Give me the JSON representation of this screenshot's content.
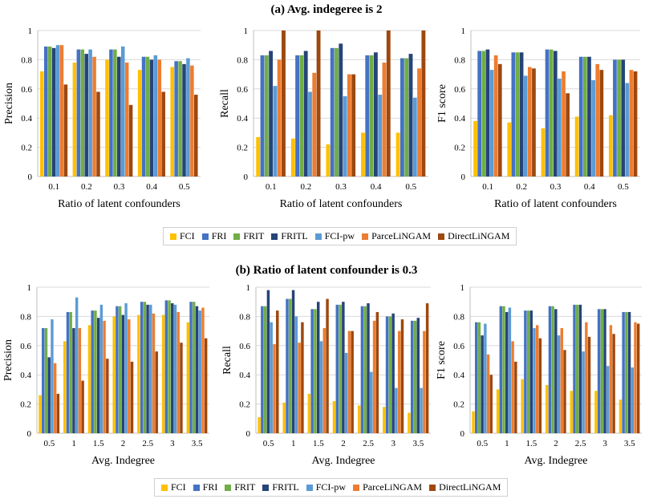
{
  "titles": {
    "section_a": "(a) Avg. indegeree is 2",
    "section_b": "(b) Ratio of latent confounder is 0.3"
  },
  "legend": [
    {
      "name": "FCI",
      "color": "#FFC000"
    },
    {
      "name": "FRI",
      "color": "#4472C4"
    },
    {
      "name": "FRIT",
      "color": "#70AD47"
    },
    {
      "name": "FRITL",
      "color": "#264478"
    },
    {
      "name": "FCI-pw",
      "color": "#5B9BD5"
    },
    {
      "name": "ParceLiNGAM",
      "color": "#ED7D31"
    },
    {
      "name": "DirectLiNGAM",
      "color": "#9E480E"
    }
  ],
  "chart_data": [
    {
      "type": "bar",
      "ylabel": "Precision",
      "xlabel": "Ratio of latent confounders",
      "ylim": [
        0,
        1
      ],
      "yticks": [
        "0",
        "0.2",
        "0.4",
        "0.6",
        "0.8",
        "1"
      ],
      "categories": [
        "0.1",
        "0.2",
        "0.3",
        "0.4",
        "0.5"
      ],
      "series": [
        {
          "name": "FCI",
          "values": [
            0.72,
            0.78,
            0.8,
            0.73,
            0.75
          ]
        },
        {
          "name": "FRI",
          "values": [
            0.89,
            0.87,
            0.87,
            0.82,
            0.79
          ]
        },
        {
          "name": "FRIT",
          "values": [
            0.89,
            0.87,
            0.87,
            0.82,
            0.79
          ]
        },
        {
          "name": "FRITL",
          "values": [
            0.88,
            0.84,
            0.82,
            0.8,
            0.77
          ]
        },
        {
          "name": "FCI-pw",
          "values": [
            0.9,
            0.87,
            0.89,
            0.83,
            0.81
          ]
        },
        {
          "name": "ParceLiNGAM",
          "values": [
            0.9,
            0.82,
            0.78,
            0.8,
            0.76
          ]
        },
        {
          "name": "DirectLiNGAM",
          "values": [
            0.63,
            0.58,
            0.49,
            0.58,
            0.56
          ]
        }
      ]
    },
    {
      "type": "bar",
      "ylabel": "Recall",
      "xlabel": "Ratio of latent confounders",
      "ylim": [
        0,
        1
      ],
      "yticks": [
        "0",
        "0.2",
        "0.4",
        "0.6",
        "0.8",
        "1"
      ],
      "categories": [
        "0.1",
        "0.2",
        "0.3",
        "0.4",
        "0.5"
      ],
      "series": [
        {
          "name": "FCI",
          "values": [
            0.27,
            0.26,
            0.22,
            0.3,
            0.3
          ]
        },
        {
          "name": "FRI",
          "values": [
            0.83,
            0.83,
            0.88,
            0.83,
            0.81
          ]
        },
        {
          "name": "FRIT",
          "values": [
            0.83,
            0.83,
            0.88,
            0.83,
            0.81
          ]
        },
        {
          "name": "FRITL",
          "values": [
            0.86,
            0.86,
            0.91,
            0.85,
            0.84
          ]
        },
        {
          "name": "FCI-pw",
          "values": [
            0.62,
            0.58,
            0.55,
            0.56,
            0.54
          ]
        },
        {
          "name": "ParceLiNGAM",
          "values": [
            0.8,
            0.71,
            0.7,
            0.78,
            0.74
          ]
        },
        {
          "name": "DirectLiNGAM",
          "values": [
            1.0,
            1.0,
            0.7,
            1.0,
            1.0
          ]
        }
      ]
    },
    {
      "type": "bar",
      "ylabel": "F1 score",
      "xlabel": "Ratio of latent confounders",
      "ylim": [
        0,
        1
      ],
      "yticks": [
        "0",
        "0.2",
        "0.4",
        "0.6",
        "0.8",
        "1"
      ],
      "categories": [
        "0.1",
        "0.2",
        "0.3",
        "0.4",
        "0.5"
      ],
      "series": [
        {
          "name": "FCI",
          "values": [
            0.38,
            0.37,
            0.33,
            0.41,
            0.42
          ]
        },
        {
          "name": "FRI",
          "values": [
            0.86,
            0.85,
            0.87,
            0.82,
            0.8
          ]
        },
        {
          "name": "FRIT",
          "values": [
            0.86,
            0.85,
            0.87,
            0.82,
            0.8
          ]
        },
        {
          "name": "FRITL",
          "values": [
            0.87,
            0.85,
            0.86,
            0.82,
            0.8
          ]
        },
        {
          "name": "FCI-pw",
          "values": [
            0.73,
            0.69,
            0.67,
            0.66,
            0.64
          ]
        },
        {
          "name": "ParceLiNGAM",
          "values": [
            0.83,
            0.75,
            0.72,
            0.77,
            0.73
          ]
        },
        {
          "name": "DirectLiNGAM",
          "values": [
            0.77,
            0.74,
            0.57,
            0.73,
            0.72
          ]
        }
      ]
    },
    {
      "type": "bar",
      "ylabel": "Precision",
      "xlabel": "Avg. Indegree",
      "ylim": [
        0,
        1
      ],
      "yticks": [
        "0",
        "0.2",
        "0.4",
        "0.6",
        "0.8",
        "1"
      ],
      "categories": [
        "0.5",
        "1",
        "1.5",
        "2",
        "2.5",
        "3",
        "3.5"
      ],
      "series": [
        {
          "name": "FCI",
          "values": [
            0.26,
            0.63,
            0.74,
            0.8,
            0.81,
            0.81,
            0.76
          ]
        },
        {
          "name": "FRI",
          "values": [
            0.72,
            0.83,
            0.84,
            0.87,
            0.9,
            0.91,
            0.9
          ]
        },
        {
          "name": "FRIT",
          "values": [
            0.72,
            0.83,
            0.84,
            0.87,
            0.9,
            0.91,
            0.9
          ]
        },
        {
          "name": "FRITL",
          "values": [
            0.52,
            0.72,
            0.79,
            0.81,
            0.88,
            0.89,
            0.87
          ]
        },
        {
          "name": "FCI-pw",
          "values": [
            0.78,
            0.93,
            0.88,
            0.89,
            0.88,
            0.88,
            0.84
          ]
        },
        {
          "name": "ParceLiNGAM",
          "values": [
            0.48,
            0.72,
            0.77,
            0.78,
            0.82,
            0.83,
            0.86
          ]
        },
        {
          "name": "DirectLiNGAM",
          "values": [
            0.27,
            0.36,
            0.51,
            0.49,
            0.56,
            0.62,
            0.65
          ]
        }
      ]
    },
    {
      "type": "bar",
      "ylabel": "Recall",
      "xlabel": "Avg. Indegree",
      "ylim": [
        0,
        1
      ],
      "yticks": [
        "0",
        "0.2",
        "0.4",
        "0.6",
        "0.8",
        "1"
      ],
      "categories": [
        "0.5",
        "1",
        "1.5",
        "2",
        "2.5",
        "3",
        "3.5"
      ],
      "series": [
        {
          "name": "FCI",
          "values": [
            0.11,
            0.21,
            0.27,
            0.22,
            0.19,
            0.18,
            0.14
          ]
        },
        {
          "name": "FRI",
          "values": [
            0.87,
            0.92,
            0.85,
            0.88,
            0.87,
            0.8,
            0.77
          ]
        },
        {
          "name": "FRIT",
          "values": [
            0.87,
            0.92,
            0.85,
            0.88,
            0.87,
            0.8,
            0.77
          ]
        },
        {
          "name": "FRITL",
          "values": [
            0.98,
            0.98,
            0.9,
            0.9,
            0.89,
            0.82,
            0.79
          ]
        },
        {
          "name": "FCI-pw",
          "values": [
            0.76,
            0.8,
            0.63,
            0.55,
            0.42,
            0.31,
            0.31
          ]
        },
        {
          "name": "ParceLiNGAM",
          "values": [
            0.61,
            0.62,
            0.72,
            0.7,
            0.77,
            0.7,
            0.7
          ]
        },
        {
          "name": "DirectLiNGAM",
          "values": [
            0.84,
            0.76,
            0.92,
            0.7,
            0.83,
            0.78,
            0.89
          ]
        }
      ]
    },
    {
      "type": "bar",
      "ylabel": "F1 score",
      "xlabel": "Avg. Indegree",
      "ylim": [
        0,
        1
      ],
      "yticks": [
        "0",
        "0.2",
        "0.4",
        "0.6",
        "0.8",
        "1"
      ],
      "categories": [
        "0.5",
        "1",
        "1.5",
        "2",
        "2.5",
        "3",
        "3.5"
      ],
      "series": [
        {
          "name": "FCI",
          "values": [
            0.15,
            0.3,
            0.37,
            0.33,
            0.29,
            0.29,
            0.23
          ]
        },
        {
          "name": "FRI",
          "values": [
            0.76,
            0.87,
            0.84,
            0.87,
            0.88,
            0.85,
            0.83
          ]
        },
        {
          "name": "FRIT",
          "values": [
            0.76,
            0.87,
            0.84,
            0.87,
            0.88,
            0.85,
            0.83
          ]
        },
        {
          "name": "FRITL",
          "values": [
            0.67,
            0.83,
            0.84,
            0.85,
            0.88,
            0.85,
            0.83
          ]
        },
        {
          "name": "FCI-pw",
          "values": [
            0.75,
            0.86,
            0.72,
            0.67,
            0.56,
            0.46,
            0.45
          ]
        },
        {
          "name": "ParceLiNGAM",
          "values": [
            0.54,
            0.63,
            0.74,
            0.72,
            0.76,
            0.74,
            0.76
          ]
        },
        {
          "name": "DirectLiNGAM",
          "values": [
            0.4,
            0.49,
            0.65,
            0.57,
            0.66,
            0.68,
            0.75
          ]
        }
      ]
    }
  ]
}
